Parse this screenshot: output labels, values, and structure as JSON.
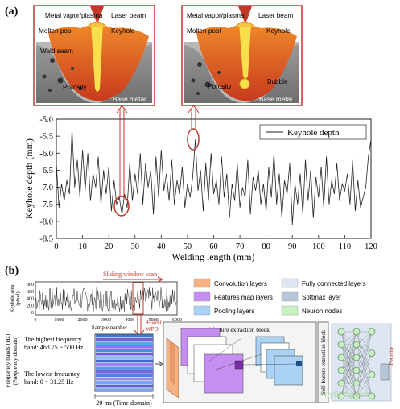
{
  "panel_a": {
    "label": "(a)",
    "inset_left": {
      "metal_vapor": "Metal vapor/plasma",
      "laser_beam": "Laser beam",
      "molten_pool": "Molten pool",
      "keyhole": "Keyhole",
      "weld_seam": "Weld seam",
      "porosity": "Porosity",
      "base_metal": "Base metal"
    },
    "inset_right": {
      "metal_vapor": "Metal vapor/plasma",
      "laser_beam": "Laser beam",
      "molten_pool": "Molten pool",
      "keyhole": "Keyhole",
      "porosity": "Porosity",
      "bubble": "Bubble",
      "base_metal": "Base metal"
    },
    "colors": {
      "accent": "#c0392b",
      "molten": "#e8622a",
      "keyhole": "#f7e04b",
      "metal": "#8a8a8a"
    }
  },
  "chart_data": {
    "type": "line",
    "xlabel": "Welding length (mm)",
    "ylabel": "Keyhole depth (mm)",
    "xlim": [
      0,
      120
    ],
    "ylim": [
      -8.5,
      -5.0
    ],
    "xticks": [
      "0",
      "10",
      "20",
      "30",
      "40",
      "50",
      "60",
      "70",
      "80",
      "90",
      "100",
      "110",
      "120"
    ],
    "yticks": [
      "-5.0",
      "-5.5",
      "-6.0",
      "-6.5",
      "-7.0",
      "-7.5",
      "-8.0",
      "-8.5"
    ],
    "legend": "top-right",
    "series": [
      {
        "name": "Keyhole depth",
        "x": [
          0,
          1,
          2,
          3,
          4,
          5,
          6,
          7,
          8,
          9,
          10,
          11,
          12,
          13,
          14,
          15,
          16,
          17,
          18,
          19,
          20,
          21,
          22,
          23,
          24,
          25,
          26,
          27,
          28,
          29,
          30,
          31,
          32,
          33,
          34,
          35,
          36,
          37,
          38,
          39,
          40,
          41,
          42,
          43,
          44,
          45,
          46,
          47,
          48,
          49,
          50,
          51,
          52,
          53,
          54,
          55,
          56,
          57,
          58,
          59,
          60,
          61,
          62,
          63,
          64,
          65,
          66,
          67,
          68,
          69,
          70,
          71,
          72,
          73,
          74,
          75,
          76,
          77,
          78,
          79,
          80,
          81,
          82,
          83,
          84,
          85,
          86,
          87,
          88,
          89,
          90,
          91,
          92,
          93,
          94,
          95,
          96,
          97,
          98,
          99,
          100,
          101,
          102,
          103,
          104,
          105,
          106,
          107,
          108,
          109,
          110,
          111,
          112,
          113,
          114,
          115,
          116,
          117,
          118,
          119,
          120
        ],
        "values": [
          -6.3,
          -7.6,
          -6.9,
          -7.4,
          -6.8,
          -7.2,
          -5.3,
          -7.0,
          -6.2,
          -7.3,
          -5.9,
          -7.1,
          -6.0,
          -7.4,
          -6.6,
          -7.0,
          -6.1,
          -7.5,
          -6.5,
          -7.2,
          -6.4,
          -7.7,
          -6.8,
          -7.5,
          -7.3,
          -7.8,
          -7.2,
          -7.6,
          -6.3,
          -7.4,
          -6.6,
          -7.2,
          -6.0,
          -7.5,
          -6.3,
          -7.0,
          -6.5,
          -7.8,
          -6.1,
          -7.3,
          -5.9,
          -7.1,
          -6.6,
          -7.4,
          -6.2,
          -7.5,
          -6.8,
          -7.2,
          -6.4,
          -7.6,
          -6.9,
          -7.3,
          -6.7,
          -5.6,
          -7.1,
          -6.5,
          -7.7,
          -6.3,
          -7.4,
          -6.0,
          -7.2,
          -6.8,
          -7.5,
          -6.1,
          -7.3,
          -6.6,
          -7.9,
          -6.9,
          -7.4,
          -6.3,
          -7.6,
          -7.0,
          -7.3,
          -6.2,
          -7.8,
          -6.7,
          -7.1,
          -6.5,
          -7.5,
          -6.9,
          -7.7,
          -6.4,
          -7.3,
          -6.0,
          -7.5,
          -6.6,
          -7.9,
          -6.8,
          -7.2,
          -6.3,
          -8.1,
          -6.9,
          -7.5,
          -6.6,
          -7.8,
          -6.2,
          -7.4,
          -6.5,
          -7.9,
          -6.7,
          -7.3,
          -6.4,
          -7.6,
          -6.1,
          -7.5,
          -6.8,
          -7.2,
          -6.3,
          -7.4,
          -6.9,
          -7.1,
          -6.6,
          -7.5,
          -6.2,
          -7.7,
          -6.8,
          -7.6,
          -7.3,
          -7.0,
          -6.1,
          -5.6
        ]
      }
    ]
  },
  "panel_b": {
    "label": "(b)",
    "signal_plot": {
      "ylabel_line1": "Keyhole area",
      "ylabel_line2": "(pixel)",
      "xlabel": "Sample number",
      "yticks": [
        "800",
        "600",
        "400",
        "200",
        "0"
      ],
      "xticks": [
        "0",
        "1000",
        "2000",
        "3000",
        "4000",
        "5000",
        "6000"
      ],
      "window_label": "Sliding window scan"
    },
    "wpd_labels": {
      "line1": "4-layer",
      "line2": "WPD"
    },
    "freq_ylabel_line1": "Frequency bands (Hz)",
    "freq_ylabel_line2": "(Frequency domain)",
    "highest_band_line1": "The highest frequency",
    "highest_band_line2": "band: 468.75 ~ 500 Hz",
    "lowest_band_line1": "The lowest frequency",
    "lowest_band_line2": "band: 0 ~ 31.25 Hz",
    "time_label": "20 ms (Time domain)",
    "legend": [
      {
        "label": "Convolution layers",
        "color": "#f4b183"
      },
      {
        "label": "Fully connected layers",
        "color": "#dde6f2"
      },
      {
        "label": "Features map layers",
        "color": "#c68ef0"
      },
      {
        "label": "Softmax layer",
        "color": "#b7c5d9"
      },
      {
        "label": "Pooling layers",
        "color": "#a9d2f5"
      },
      {
        "label": "Neuron nodes",
        "color": "#c8f0c0"
      }
    ],
    "block_title": "Self-feature extraction block",
    "block_vertical": "Self-feature extraction block",
    "output_label": "Porosity",
    "watermark": "AnyS***g.com"
  }
}
